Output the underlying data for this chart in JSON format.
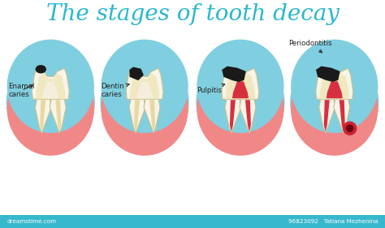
{
  "title": "The stages of tooth decay",
  "title_color": "#2ab8cc",
  "title_fontsize": 20,
  "background_color": "#ffffff",
  "gum_color": "#f08888",
  "enamel_color": "#f8f4e8",
  "dentin_color": "#f0e8c0",
  "pulp_healthy": "#f5eedd",
  "pulp_infected": "#d63040",
  "decay_color": "#1a1a1a",
  "root_canal_healthy": "#e8d8a0",
  "root_canal_infected": "#d63040",
  "circle_bg_color": "#80cfe0",
  "arrow_color": "#333333",
  "label_color": "#222222",
  "footer_color": "#38b8cc",
  "watermark_text": "dreamstime.com",
  "footer_right": "96823092   Tatiana Mezhenina",
  "abscess_color": "#cc2233",
  "outline_color": "#c8c090"
}
